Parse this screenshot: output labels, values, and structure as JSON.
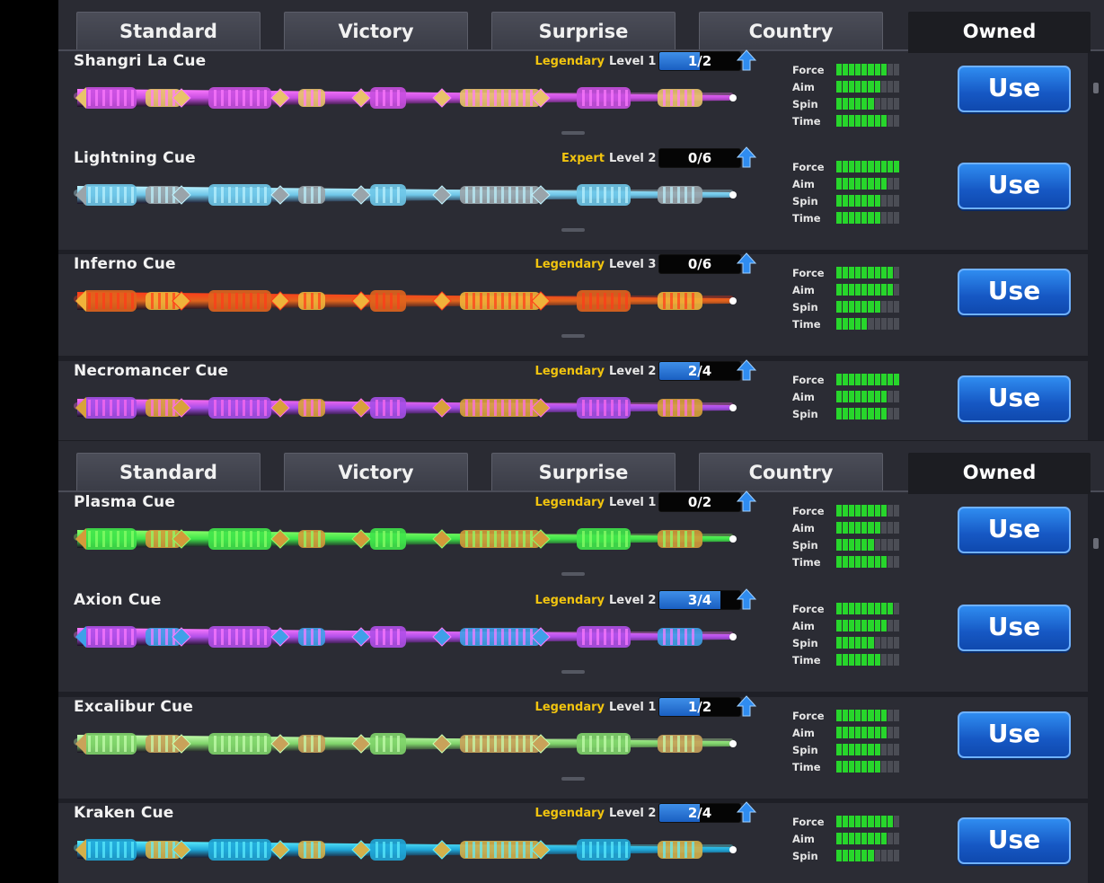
{
  "panels": [
    {
      "tabs": [
        "Standard",
        "Victory",
        "Surprise",
        "Country",
        "Owned"
      ],
      "active_tab": "Owned",
      "cues": [
        {
          "name": "Shangri La Cue",
          "rarity": "Legendary",
          "level": "Level 1",
          "progress": "1/2",
          "progress_fraction": 0.5,
          "stats": {
            "Force": 8,
            "Aim": 7,
            "Spin": 6,
            "Time": 8
          },
          "use": "Use",
          "colors": {
            "shaft": "#c84fe0",
            "glow": "#ff7cff",
            "accent": "#e8c36a"
          }
        },
        {
          "name": "Lightning Cue",
          "rarity": "Expert",
          "level": "Level 2",
          "progress": "0/6",
          "progress_fraction": 0,
          "stats": {
            "Force": 10,
            "Aim": 8,
            "Spin": 7,
            "Time": 7
          },
          "use": "Use",
          "colors": {
            "shaft": "#6ec6e8",
            "glow": "#bff4ff",
            "accent": "#9aa4aa"
          }
        },
        {
          "name": "Inferno Cue",
          "rarity": "Legendary",
          "level": "Level 3",
          "progress": "0/6",
          "progress_fraction": 0,
          "stats": {
            "Force": 9,
            "Aim": 9,
            "Spin": 7,
            "Time": 5
          },
          "use": "Use",
          "colors": {
            "shaft": "#e0641d",
            "glow": "#ff3a1a",
            "accent": "#f0b23a"
          }
        },
        {
          "name": "Necromancer Cue",
          "rarity": "Legendary",
          "level": "Level 2",
          "progress": "2/4",
          "progress_fraction": 0.5,
          "stats": {
            "Force": 10,
            "Aim": 8,
            "Spin": 8
          },
          "use": "Use",
          "colors": {
            "shaft": "#a64fe8",
            "glow": "#ff6cf0",
            "accent": "#d8a23a"
          }
        }
      ]
    },
    {
      "tabs": [
        "Standard",
        "Victory",
        "Surprise",
        "Country",
        "Owned"
      ],
      "active_tab": "Owned",
      "cues": [
        {
          "name": "Plasma Cue",
          "rarity": "Legendary",
          "level": "Level 1",
          "progress": "0/2",
          "progress_fraction": 0,
          "stats": {
            "Force": 8,
            "Aim": 7,
            "Spin": 6,
            "Time": 8
          },
          "use": "Use",
          "colors": {
            "shaft": "#3fe44a",
            "glow": "#8dff6a",
            "accent": "#d39a3a"
          }
        },
        {
          "name": "Axion Cue",
          "rarity": "Legendary",
          "level": "Level 2",
          "progress": "3/4",
          "progress_fraction": 0.75,
          "stats": {
            "Force": 9,
            "Aim": 8,
            "Spin": 6,
            "Time": 7
          },
          "use": "Use",
          "colors": {
            "shaft": "#b04fe8",
            "glow": "#ff7cff",
            "accent": "#3fa0e8"
          }
        },
        {
          "name": "Excalibur Cue",
          "rarity": "Legendary",
          "level": "Level 1",
          "progress": "1/2",
          "progress_fraction": 0.5,
          "stats": {
            "Force": 8,
            "Aim": 8,
            "Spin": 7,
            "Time": 7
          },
          "use": "Use",
          "colors": {
            "shaft": "#7fd46a",
            "glow": "#c8ffb0",
            "accent": "#c9a25a"
          }
        },
        {
          "name": "Kraken Cue",
          "rarity": "Legendary",
          "level": "Level 2",
          "progress": "2/4",
          "progress_fraction": 0.5,
          "stats": {
            "Force": 9,
            "Aim": 8,
            "Spin": 6
          },
          "use": "Use",
          "colors": {
            "shaft": "#1fa7d8",
            "glow": "#5ff0ff",
            "accent": "#d4b04a"
          }
        }
      ]
    }
  ],
  "stat_segments": 10,
  "icons": {
    "up": "up-arrow-icon"
  }
}
